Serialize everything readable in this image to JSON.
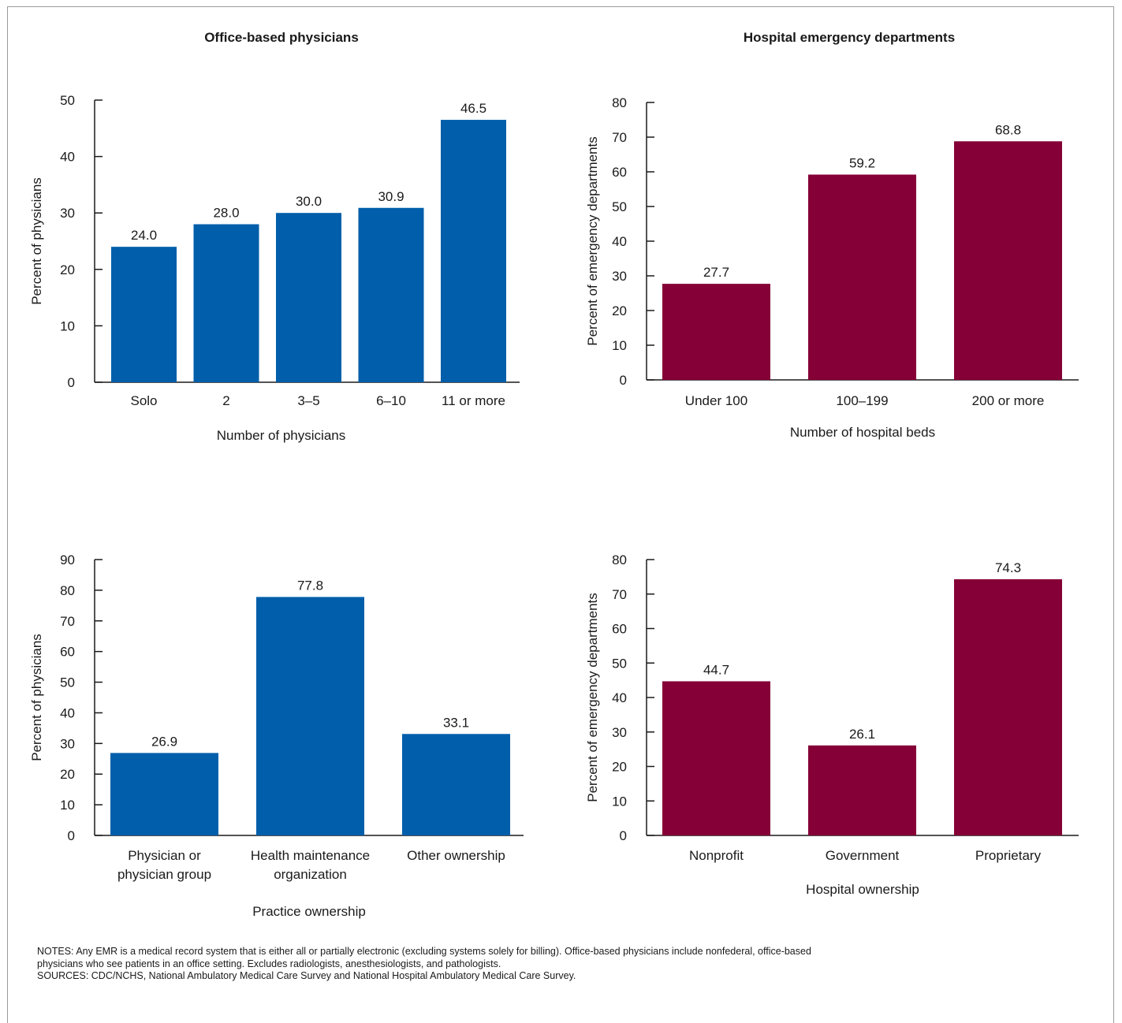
{
  "titles": {
    "left": "Office-based physicians",
    "right": "Hospital emergency departments"
  },
  "colors": {
    "office": "#005eaa",
    "hospital": "#850036",
    "axis": "#1a1a1a"
  },
  "chart_data": [
    {
      "id": "c1",
      "type": "bar",
      "categories": [
        [
          "Solo"
        ],
        [
          "2"
        ],
        [
          "3–5"
        ],
        [
          "6–10"
        ],
        [
          "11 or more"
        ]
      ],
      "values": [
        24.0,
        28.0,
        30.0,
        30.9,
        46.5
      ],
      "value_labels": [
        "24.0",
        "28.0",
        "30.0",
        "30.9",
        "46.5"
      ],
      "xlabel": "Number of physicians",
      "ylabel": "Percent of physicians",
      "ylim": [
        0,
        50
      ],
      "yticks": [
        0,
        10,
        20,
        30,
        40,
        50
      ],
      "color": "office"
    },
    {
      "id": "c2",
      "type": "bar",
      "categories": [
        [
          "Under 100"
        ],
        [
          "100–199"
        ],
        [
          "200 or more"
        ]
      ],
      "values": [
        27.7,
        59.2,
        68.8
      ],
      "value_labels": [
        "27.7",
        "59.2",
        "68.8"
      ],
      "xlabel": "Number of hospital beds",
      "ylabel": "Percent of emergency departments",
      "ylim": [
        0,
        80
      ],
      "yticks": [
        0,
        10,
        20,
        30,
        40,
        50,
        60,
        70,
        80
      ],
      "color": "hospital"
    },
    {
      "id": "c3",
      "type": "bar",
      "categories": [
        [
          "Physician or",
          "physician group"
        ],
        [
          "Health maintenance",
          "organization"
        ],
        [
          "Other ownership"
        ]
      ],
      "values": [
        26.9,
        77.8,
        33.1
      ],
      "value_labels": [
        "26.9",
        "77.8",
        "33.1"
      ],
      "xlabel": "Practice ownership",
      "ylabel": "Percent of physicians",
      "ylim": [
        0,
        90
      ],
      "yticks": [
        0,
        10,
        20,
        30,
        40,
        50,
        60,
        70,
        80,
        90
      ],
      "color": "office"
    },
    {
      "id": "c4",
      "type": "bar",
      "categories": [
        [
          "Nonprofit"
        ],
        [
          "Government"
        ],
        [
          "Proprietary"
        ]
      ],
      "values": [
        44.7,
        26.1,
        74.3
      ],
      "value_labels": [
        "44.7",
        "26.1",
        "74.3"
      ],
      "xlabel": "Hospital ownership",
      "ylabel": "Percent of emergency departments",
      "ylim": [
        0,
        80
      ],
      "yticks": [
        0,
        10,
        20,
        30,
        40,
        50,
        60,
        70,
        80
      ],
      "color": "hospital"
    }
  ],
  "notes": {
    "line1": "NOTES: Any EMR is a medical record system that is either all or partially electronic (excluding systems solely for billing). Office-based physicians include nonfederal, office-based",
    "line2": "physicians who see patients in an office setting. Excludes radiologists, anesthesiologists, and pathologists.",
    "line3": "SOURCES: CDC/NCHS, National Ambulatory Medical Care Survey and National Hospital Ambulatory Medical Care Survey."
  }
}
